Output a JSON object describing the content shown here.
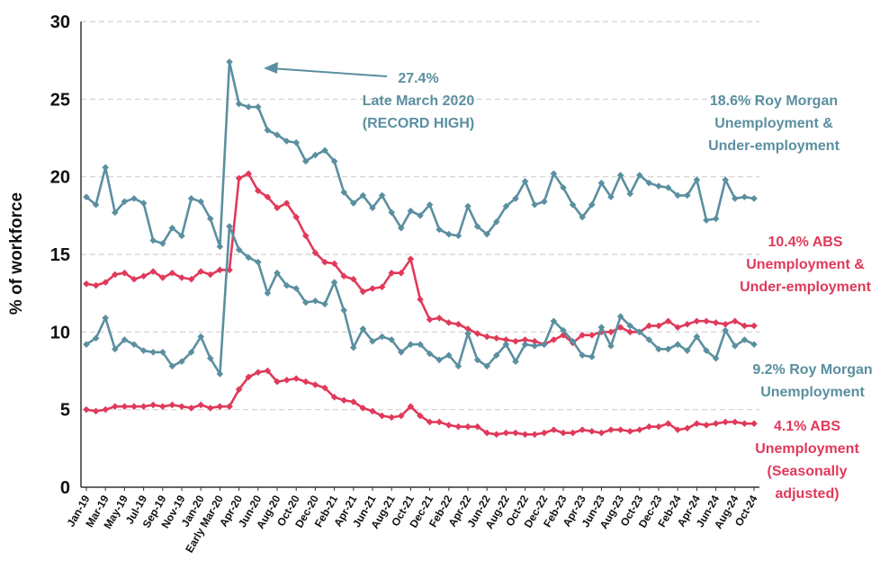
{
  "chart_data": {
    "type": "line",
    "title": "",
    "xlabel": "",
    "ylabel": "% of workforce",
    "ylim": [
      0,
      30
    ],
    "yticks": [
      "0",
      "5",
      "10",
      "15",
      "20",
      "25",
      "30"
    ],
    "grid": true,
    "x": [
      "Jan-19",
      "Feb-19",
      "Mar-19",
      "Apr-19",
      "May-19",
      "Jun-19",
      "Jul-19",
      "Aug-19",
      "Sep-19",
      "Oct-19",
      "Nov-19",
      "Dec-19",
      "Jan-20",
      "Feb-20",
      "Early Mar-20",
      "Late Mar-20",
      "Apr-20",
      "May-20",
      "Jun-20",
      "Jul-20",
      "Aug-20",
      "Sep-20",
      "Oct-20",
      "Nov-20",
      "Dec-20",
      "Jan-21",
      "Feb-21",
      "Mar-21",
      "Apr-21",
      "May-21",
      "Jun-21",
      "Jul-21",
      "Aug-21",
      "Sep-21",
      "Oct-21",
      "Nov-21",
      "Dec-21",
      "Jan-22",
      "Feb-22",
      "Mar-22",
      "Apr-22",
      "May-22",
      "Jun-22",
      "Jul-22",
      "Aug-22",
      "Sep-22",
      "Oct-22",
      "Nov-22",
      "Dec-22",
      "Jan-23",
      "Feb-23",
      "Mar-23",
      "Apr-23",
      "May-23",
      "Jun-23",
      "Jul-23",
      "Aug-23",
      "Sep-23",
      "Oct-23",
      "Nov-23",
      "Dec-23",
      "Jan-24",
      "Feb-24",
      "Mar-24",
      "Apr-24",
      "May-24",
      "Jun-24",
      "Jul-24",
      "Aug-24",
      "Sep-24",
      "Oct-24"
    ],
    "x_tick_labels": [
      "Jan-19",
      "Mar-19",
      "May-19",
      "Jul-19",
      "Sep-19",
      "Nov-19",
      "Jan-20",
      "Early Mar-20",
      "Apr-20",
      "Jun-20",
      "Aug-20",
      "Oct-20",
      "Dec-20",
      "Feb-21",
      "Apr-21",
      "Jun-21",
      "Aug-21",
      "Oct-21",
      "Dec-21",
      "Feb-22",
      "Apr-22",
      "Jun-22",
      "Aug-22",
      "Oct-22",
      "Dec-22",
      "Feb-23",
      "Apr-23",
      "Jun-23",
      "Aug-23",
      "Oct-23",
      "Dec-23",
      "Feb-24",
      "Apr-24",
      "Jun-24",
      "Aug-24",
      "Oct-24"
    ],
    "series": [
      {
        "name": "Roy Morgan Unemployment & Under-employment",
        "color": "#5a8fa0",
        "values": [
          18.7,
          18.2,
          20.6,
          17.7,
          18.4,
          18.6,
          18.3,
          15.9,
          15.7,
          16.7,
          16.2,
          18.6,
          18.4,
          17.3,
          15.5,
          27.4,
          24.7,
          24.5,
          24.5,
          23.0,
          22.7,
          22.3,
          22.2,
          21.0,
          21.4,
          21.7,
          21.0,
          19.0,
          18.3,
          18.8,
          18.0,
          18.8,
          17.7,
          16.7,
          17.8,
          17.5,
          18.2,
          16.6,
          16.3,
          16.2,
          18.1,
          16.8,
          16.3,
          17.1,
          18.1,
          18.6,
          19.7,
          18.2,
          18.4,
          20.2,
          19.3,
          18.2,
          17.4,
          18.2,
          19.6,
          18.7,
          20.1,
          18.9,
          20.1,
          19.6,
          19.4,
          19.3,
          18.8,
          18.8,
          19.8,
          17.2,
          17.3,
          19.8,
          18.6,
          18.7,
          18.6
        ]
      },
      {
        "name": "ABS Unemployment & Under-employment",
        "color": "#e0395a",
        "values": [
          13.1,
          13.0,
          13.2,
          13.7,
          13.8,
          13.4,
          13.6,
          13.9,
          13.5,
          13.8,
          13.5,
          13.4,
          13.9,
          13.7,
          14.0,
          14.0,
          19.9,
          20.2,
          19.1,
          18.7,
          18.0,
          18.3,
          17.4,
          16.2,
          15.1,
          14.5,
          14.4,
          13.6,
          13.4,
          12.6,
          12.8,
          12.9,
          13.8,
          13.8,
          14.7,
          12.1,
          10.8,
          10.9,
          10.6,
          10.5,
          10.2,
          9.9,
          9.7,
          9.6,
          9.5,
          9.4,
          9.5,
          9.4,
          9.2,
          9.5,
          9.8,
          9.3,
          9.8,
          9.8,
          10.0,
          10.0,
          10.3,
          10.0,
          10.0,
          10.4,
          10.4,
          10.7,
          10.3,
          10.5,
          10.7,
          10.7,
          10.6,
          10.5,
          10.7,
          10.4,
          10.4
        ]
      },
      {
        "name": "Roy Morgan Unemployment",
        "color": "#5a8fa0",
        "values": [
          9.2,
          9.6,
          10.9,
          8.9,
          9.5,
          9.2,
          8.8,
          8.7,
          8.7,
          7.8,
          8.1,
          8.7,
          9.7,
          8.3,
          7.3,
          16.8,
          15.3,
          14.8,
          14.5,
          12.5,
          13.8,
          13.0,
          12.8,
          11.9,
          12.0,
          11.8,
          13.2,
          11.4,
          9.0,
          10.2,
          9.4,
          9.7,
          9.5,
          8.7,
          9.2,
          9.2,
          8.6,
          8.2,
          8.5,
          7.8,
          9.9,
          8.2,
          7.8,
          8.5,
          9.2,
          8.1,
          9.2,
          9.1,
          9.2,
          10.7,
          10.1,
          9.4,
          8.5,
          8.4,
          10.3,
          9.1,
          11.0,
          10.4,
          10.0,
          9.5,
          8.9,
          8.9,
          9.2,
          8.8,
          9.7,
          8.8,
          8.3,
          10.1,
          9.1,
          9.5,
          9.2
        ]
      },
      {
        "name": "ABS Unemployment (Seasonally adjusted)",
        "color": "#e0395a",
        "values": [
          5.0,
          4.9,
          5.0,
          5.2,
          5.2,
          5.2,
          5.2,
          5.3,
          5.2,
          5.3,
          5.2,
          5.1,
          5.3,
          5.1,
          5.2,
          5.2,
          6.3,
          7.1,
          7.4,
          7.5,
          6.8,
          6.9,
          7.0,
          6.8,
          6.6,
          6.4,
          5.8,
          5.6,
          5.5,
          5.1,
          4.9,
          4.6,
          4.5,
          4.6,
          5.2,
          4.6,
          4.2,
          4.2,
          4.0,
          3.9,
          3.9,
          3.9,
          3.5,
          3.4,
          3.5,
          3.5,
          3.4,
          3.4,
          3.5,
          3.7,
          3.5,
          3.5,
          3.7,
          3.6,
          3.5,
          3.7,
          3.7,
          3.6,
          3.7,
          3.9,
          3.9,
          4.1,
          3.7,
          3.8,
          4.1,
          4.0,
          4.1,
          4.2,
          4.2,
          4.1,
          4.1
        ]
      }
    ],
    "annotations": {
      "peak": [
        "27.4%",
        "Late March 2020",
        "(RECORD HIGH)"
      ],
      "rm_underemployment": [
        "18.6% Roy Morgan",
        "Unemployment &",
        "Under-employment"
      ],
      "abs_underemployment": [
        "10.4% ABS",
        "Unemployment &",
        "Under-employment"
      ],
      "rm_unemployment": [
        "9.2% Roy Morgan",
        "Unemployment"
      ],
      "abs_unemployment": [
        "4.1% ABS",
        "Unemployment",
        "(Seasonally",
        "adjusted)"
      ]
    }
  }
}
